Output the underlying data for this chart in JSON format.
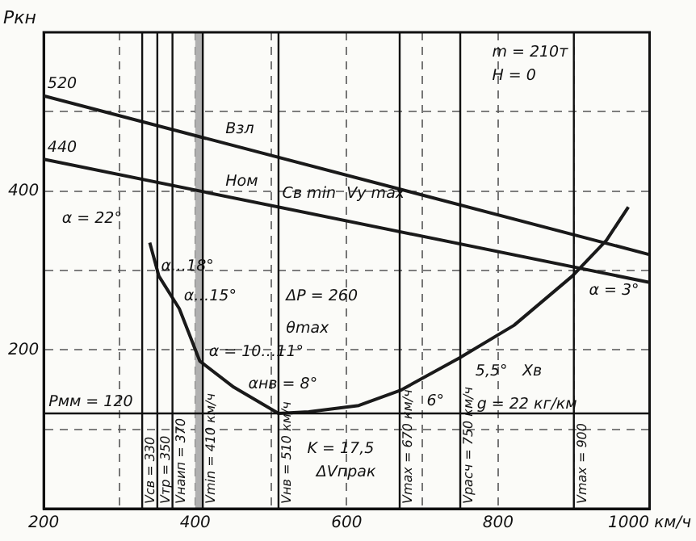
{
  "chart_data": {
    "type": "line",
    "ylabel": "Pкн",
    "xlim": [
      200,
      1000
    ],
    "ylim": [
      0,
      600
    ],
    "xticks": [
      200,
      {
        "value": 300,
        "label": null
      },
      400,
      {
        "value": 500,
        "label": null
      },
      600,
      {
        "value": 700,
        "label": null
      },
      800,
      {
        "value": 900,
        "label": null
      },
      {
        "value": 1000,
        "label": "1000 км/ч"
      }
    ],
    "yticks": [
      {
        "value": 0,
        "label": null
      },
      {
        "value": 100,
        "label": null
      },
      200,
      {
        "value": 300,
        "label": null
      },
      400,
      {
        "value": 500,
        "label": null
      },
      {
        "value": 600,
        "label": null
      }
    ],
    "grid": true,
    "legend": false,
    "marker": "none",
    "series": [
      {
        "name": "Взл",
        "color": "#1a1a1a",
        "x": [
          200,
          1000
        ],
        "values": [
          520,
          320
        ]
      },
      {
        "name": "Ном",
        "color": "#1a1a1a",
        "x": [
          200,
          1000
        ],
        "values": [
          440,
          285
        ]
      },
      {
        "color": "#1a1a1a",
        "x": [
          340,
          352,
          379,
          406,
          451,
          510,
          550,
          616,
          671,
          749,
          821,
          898,
          943,
          972
        ],
        "values": [
          335,
          293,
          252,
          186,
          153,
          120,
          122,
          130,
          149,
          190,
          231,
          293,
          338,
          380
        ]
      }
    ],
    "bands": [
      {
        "axis": "x",
        "from": 400,
        "to": 410,
        "color": "#b0b0b0"
      }
    ],
    "ref_lines": [
      {
        "axis": "x",
        "value": 330,
        "label": "Vсв = 330"
      },
      {
        "axis": "x",
        "value": 350,
        "label": "Vтр = 350"
      },
      {
        "axis": "x",
        "value": 370,
        "label": "Vнаип = 370"
      },
      {
        "axis": "x",
        "value": 410,
        "label": "Vmin = 410 км/ч"
      },
      {
        "axis": "x",
        "value": 510,
        "label": "Vнв = 510 км/ч"
      },
      {
        "axis": "x",
        "value": 670,
        "label": "Vmax = 670 км/ч"
      },
      {
        "axis": "x",
        "value": 750,
        "label": "Vрасч = 750 км/ч"
      },
      {
        "axis": "x",
        "value": 900,
        "label": "Vmax = 900"
      },
      {
        "axis": "y",
        "value": 120,
        "label": "Pмм = 120"
      }
    ],
    "annotations": [
      "m = 210т",
      "H = 0",
      {
        "text": "520",
        "x": 205,
        "y": 530
      },
      {
        "text": "440",
        "x": 205,
        "y": 450
      },
      "α = 22°",
      {
        "text": "α…18°",
        "x": 355,
        "y": 300
      },
      {
        "text": "α…15°",
        "x": 385,
        "y": 262
      },
      {
        "text": "α = 10…11°",
        "x": 418,
        "y": 192
      },
      "ΔP = 260",
      "θmax",
      {
        "text": "αнв = 8°",
        "x": 470,
        "y": 152
      },
      "K = 17,5",
      "ΔVпрак",
      "g = 22 кг/км",
      "6°",
      "5,5°",
      "Xв",
      "α = 3°",
      {
        "text": "Cв min",
        "x": 515,
        "y": 392
      },
      "Vy max"
    ]
  }
}
